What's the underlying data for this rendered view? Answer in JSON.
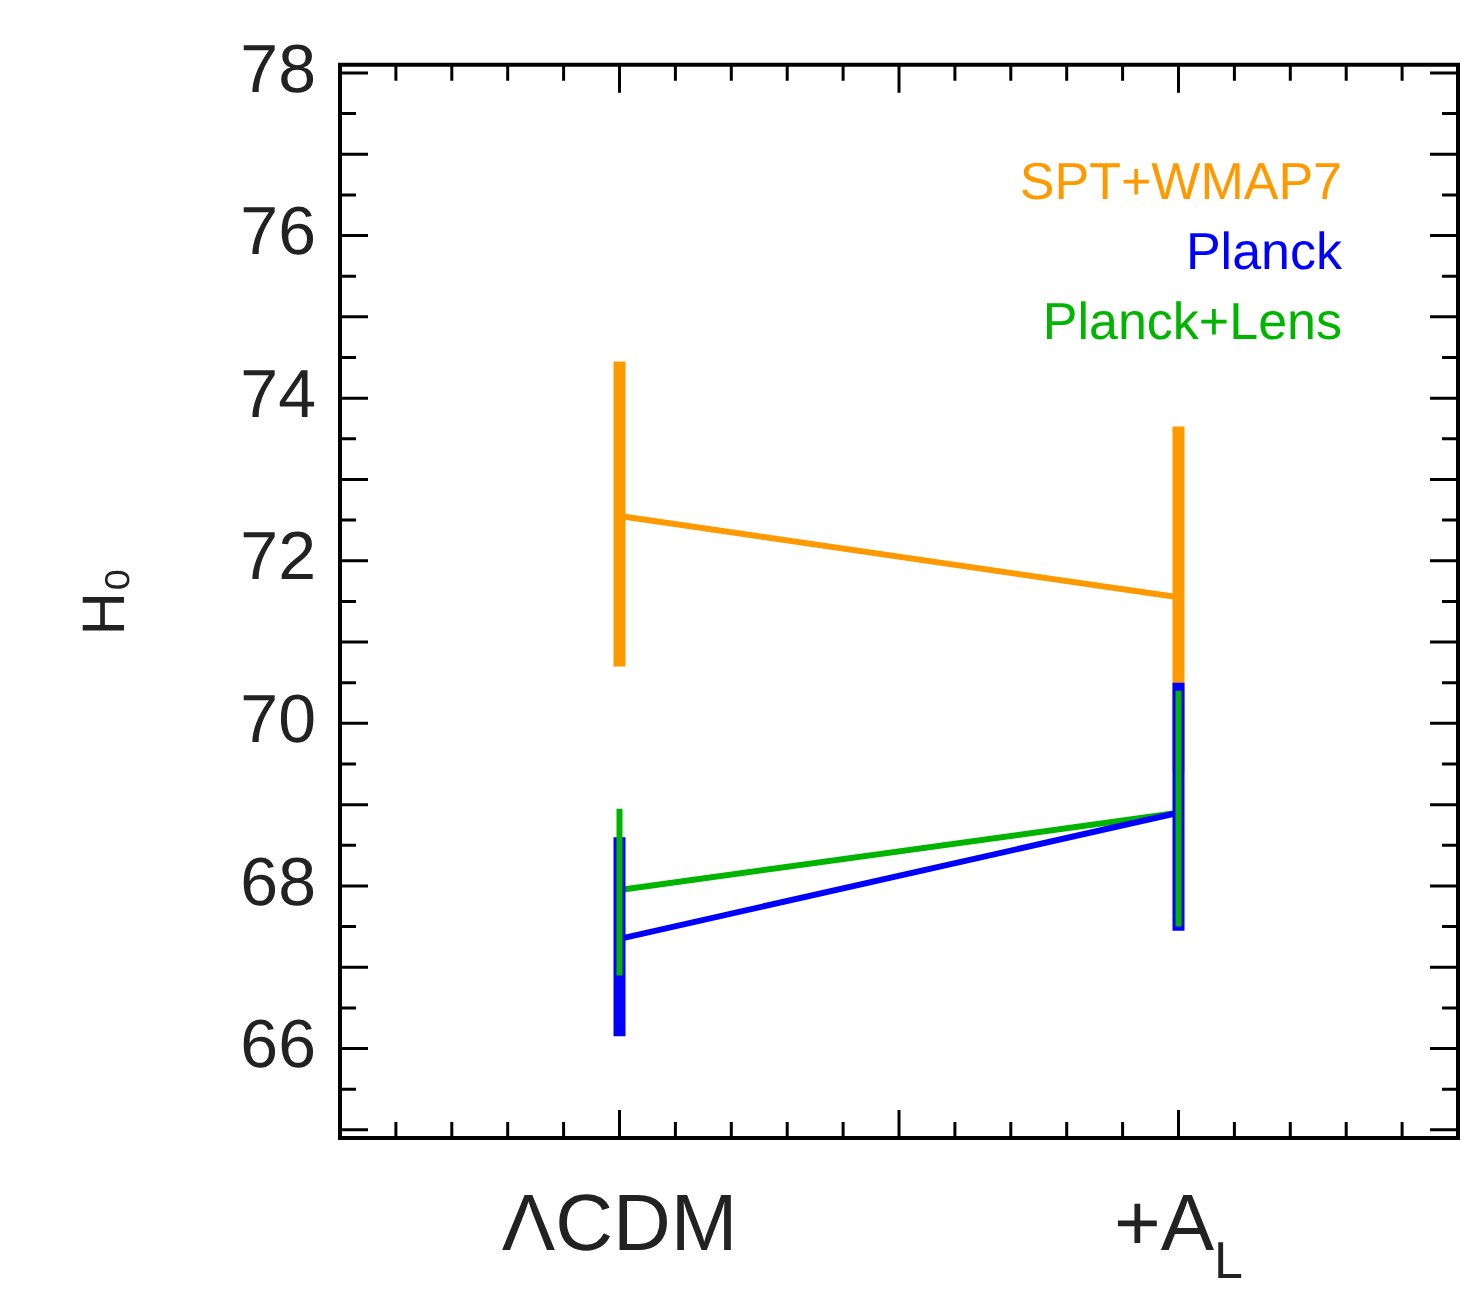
{
  "chart_data": {
    "type": "line",
    "ylabel": "H₀",
    "categories": [
      "ΛCDM",
      "+A$_{L}$"
    ],
    "ylim": [
      64.9,
      78.1
    ],
    "yticks": [
      66,
      68,
      70,
      72,
      74,
      76,
      78
    ],
    "grid": false,
    "legend": "top right",
    "marker": "none",
    "line_style": "solid",
    "series": [
      {
        "name": "SPT+WMAP7",
        "color": "#ff9900",
        "values": [
          72.55,
          71.55
        ],
        "errors": [
          [
            70.7,
            74.45
          ],
          [
            69.4,
            73.65
          ]
        ]
      },
      {
        "name": "Planck",
        "color": "#0000ff",
        "values": [
          67.35,
          68.9
        ],
        "errors": [
          [
            66.15,
            68.6
          ],
          [
            67.45,
            70.5
          ]
        ]
      },
      {
        "name": "Planck+Lens",
        "color": "#00b400",
        "values": [
          67.95,
          68.9
        ],
        "errors": [
          [
            66.9,
            68.95
          ],
          [
            67.5,
            70.4
          ]
        ]
      }
    ]
  }
}
